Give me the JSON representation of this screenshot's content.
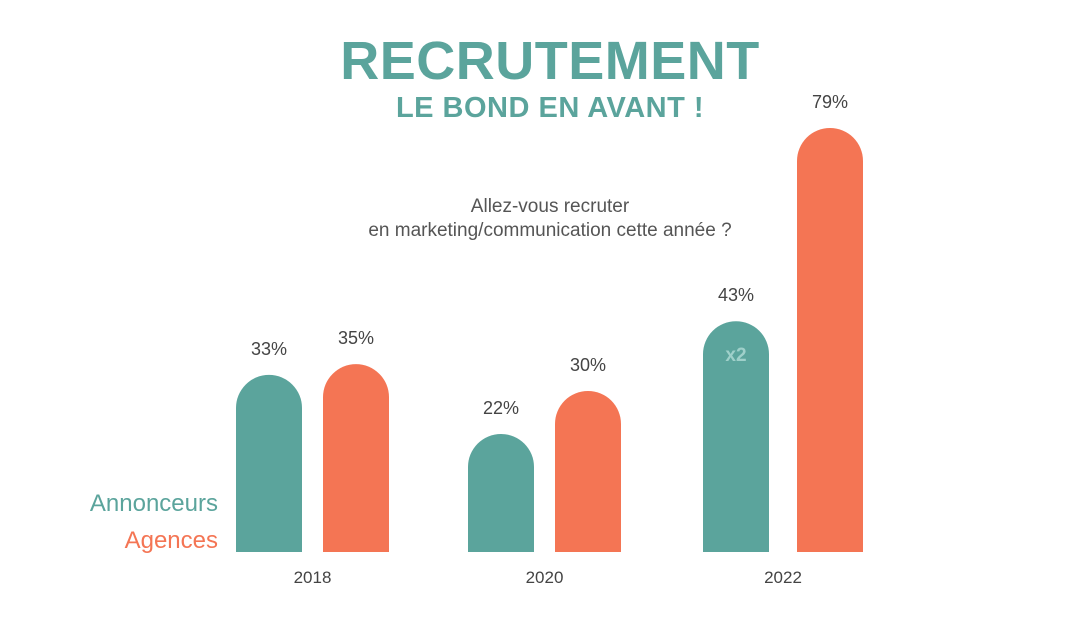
{
  "colors": {
    "announcers": "#5ba49c",
    "agencies": "#f47554",
    "title": "#5ba49c",
    "text": "#444444",
    "inner_label": "#9fd0ca"
  },
  "chart_data": {
    "type": "bar",
    "title": "RECRUTEMENT",
    "subtitle": "LE BOND EN AVANT !",
    "question_lines": [
      "Allez-vous recruter",
      "en marketing/communication cette année ?"
    ],
    "categories": [
      "2018",
      "2020",
      "2022"
    ],
    "series": [
      {
        "name": "Annonceurs",
        "values": [
          33,
          22,
          43
        ],
        "labels": [
          "33%",
          "22%",
          "43%"
        ]
      },
      {
        "name": "Agences",
        "values": [
          35,
          30,
          79
        ],
        "labels": [
          "35%",
          "30%",
          "79%"
        ]
      }
    ],
    "annotation": {
      "text": "x2",
      "category": "2022",
      "series": "Annonceurs"
    },
    "legend_position": "bottom-left",
    "ylim": [
      0,
      79
    ],
    "grid": false
  }
}
